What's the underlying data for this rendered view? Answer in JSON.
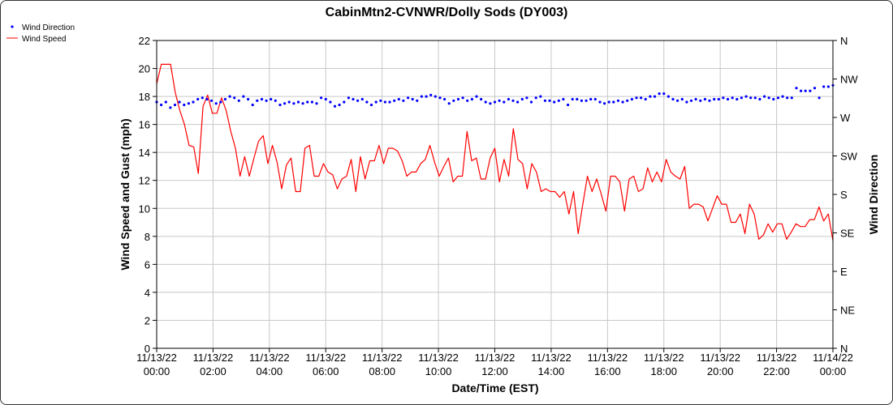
{
  "chart_data": {
    "type": "line",
    "title": "CabinMtn2-CVNWR/Dolly Sods (DY003)",
    "xlabel": "Date/Time (EST)",
    "ylabel": "Wind Speed and Gust (mph)",
    "y2label": "Wind Direction",
    "ylim": [
      0,
      22
    ],
    "xlim_hours": [
      0,
      24
    ],
    "y_ticks": [
      0,
      2,
      4,
      6,
      8,
      10,
      12,
      14,
      16,
      18,
      20,
      22
    ],
    "y2_ticks": [
      "N",
      "NE",
      "E",
      "SE",
      "S",
      "SW",
      "W",
      "NW",
      "N"
    ],
    "x_ticks": [
      {
        "date": "11/13/22",
        "time": "00:00"
      },
      {
        "date": "11/13/22",
        "time": "02:00"
      },
      {
        "date": "11/13/22",
        "time": "04:00"
      },
      {
        "date": "11/13/22",
        "time": "06:00"
      },
      {
        "date": "11/13/22",
        "time": "08:00"
      },
      {
        "date": "11/13/22",
        "time": "10:00"
      },
      {
        "date": "11/13/22",
        "time": "12:00"
      },
      {
        "date": "11/13/22",
        "time": "14:00"
      },
      {
        "date": "11/13/22",
        "time": "16:00"
      },
      {
        "date": "11/13/22",
        "time": "18:00"
      },
      {
        "date": "11/13/22",
        "time": "20:00"
      },
      {
        "date": "11/13/22",
        "time": "22:00"
      },
      {
        "date": "11/14/22",
        "time": "00:00"
      }
    ],
    "grid": true,
    "legend_position": "top-left",
    "series": [
      {
        "name": "Wind Direction",
        "type": "scatter",
        "color": "#0000ff",
        "axis": "right",
        "step_hours": 0.1667,
        "values": [
          17.6,
          17.4,
          17.6,
          17.2,
          17.4,
          17.6,
          17.4,
          17.5,
          17.6,
          17.8,
          17.9,
          17.8,
          17.7,
          17.5,
          17.6,
          17.8,
          18.0,
          17.9,
          17.7,
          18.0,
          17.8,
          17.4,
          17.7,
          17.8,
          17.7,
          17.8,
          17.7,
          17.4,
          17.5,
          17.6,
          17.5,
          17.6,
          17.5,
          17.6,
          17.6,
          17.5,
          17.9,
          17.8,
          17.6,
          17.3,
          17.4,
          17.6,
          17.9,
          17.8,
          17.7,
          17.8,
          17.6,
          17.4,
          17.6,
          17.7,
          17.6,
          17.6,
          17.7,
          17.8,
          17.7,
          17.9,
          17.8,
          17.7,
          18.0,
          18.0,
          18.1,
          18.0,
          17.9,
          17.8,
          17.5,
          17.7,
          17.8,
          17.9,
          17.7,
          17.8,
          18.0,
          17.8,
          17.6,
          17.5,
          17.6,
          17.7,
          17.6,
          17.8,
          17.7,
          17.6,
          17.8,
          17.9,
          17.6,
          17.9,
          18.0,
          17.7,
          17.7,
          17.6,
          17.7,
          17.8,
          17.4,
          17.8,
          17.8,
          17.7,
          17.7,
          17.8,
          17.8,
          17.6,
          17.5,
          17.6,
          17.6,
          17.7,
          17.6,
          17.7,
          17.8,
          17.9,
          17.9,
          17.8,
          18.0,
          18.0,
          18.2,
          18.2,
          18.0,
          17.8,
          17.7,
          17.8,
          17.6,
          17.7,
          17.8,
          17.7,
          17.8,
          17.7,
          17.8,
          17.8,
          17.9,
          17.8,
          17.9,
          17.8,
          17.9,
          18.0,
          17.9,
          17.9,
          17.8,
          18.0,
          17.9,
          17.8,
          17.9,
          18.0,
          17.9,
          17.9,
          18.6,
          18.4,
          18.4,
          18.4,
          18.6,
          17.9,
          18.7,
          18.7,
          18.8
        ]
      },
      {
        "name": "Wind Speed",
        "type": "line",
        "color": "#ff0000",
        "axis": "left",
        "step_hours": 0.1667,
        "values": [
          18.9,
          20.3,
          20.3,
          20.3,
          18.3,
          17.0,
          16.0,
          14.5,
          14.4,
          12.5,
          17.3,
          18.1,
          16.8,
          16.8,
          17.9,
          17.0,
          15.5,
          14.3,
          12.3,
          13.7,
          12.3,
          13.6,
          14.8,
          15.2,
          13.2,
          14.5,
          13.3,
          11.4,
          13.1,
          13.6,
          11.2,
          11.2,
          14.3,
          14.5,
          12.3,
          12.3,
          13.2,
          12.6,
          12.4,
          11.4,
          12.1,
          12.3,
          13.5,
          11.2,
          13.7,
          12.1,
          13.4,
          13.4,
          14.5,
          13.2,
          14.3,
          14.3,
          14.1,
          13.4,
          12.3,
          12.6,
          12.6,
          13.2,
          13.5,
          14.5,
          13.3,
          12.3,
          13.0,
          13.6,
          11.9,
          12.3,
          12.3,
          15.5,
          13.4,
          13.6,
          12.1,
          12.1,
          13.6,
          14.3,
          11.9,
          13.5,
          12.3,
          15.7,
          13.5,
          13.2,
          11.4,
          13.2,
          12.6,
          11.2,
          11.4,
          11.2,
          11.2,
          10.8,
          11.2,
          9.6,
          11.2,
          8.2,
          10.3,
          12.3,
          11.2,
          12.1,
          11.0,
          9.8,
          12.3,
          12.3,
          11.9,
          9.8,
          12.1,
          12.3,
          11.2,
          11.4,
          12.9,
          11.9,
          12.6,
          11.9,
          13.5,
          12.6,
          12.3,
          12.1,
          13.0,
          10.0,
          10.3,
          10.3,
          10.1,
          9.1,
          10.0,
          10.9,
          10.3,
          10.3,
          9.0,
          9.0,
          9.6,
          8.2,
          10.3,
          9.6,
          7.8,
          8.1,
          8.9,
          8.3,
          8.9,
          8.9,
          7.8,
          8.3,
          8.9,
          8.7,
          8.7,
          9.2,
          9.2,
          10.1,
          9.1,
          9.6,
          7.7
        ]
      }
    ]
  }
}
